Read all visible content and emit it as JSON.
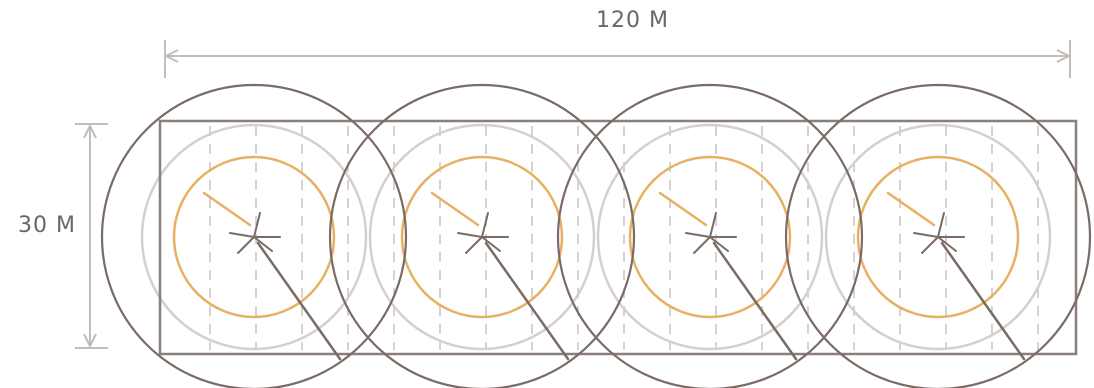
{
  "dimensions": {
    "width_label": "120 M",
    "height_label": "30 M"
  },
  "colors": {
    "outer_ring": "#7a6b66",
    "mid_ring": "#d3d0ce",
    "inner_ring": "#e8b063",
    "field": "#8a7f7a",
    "dashes": "#c7c3c0",
    "dimension_line": "#c2bdb9"
  },
  "units": [
    {
      "name": "unit-1"
    },
    {
      "name": "unit-2"
    },
    {
      "name": "unit-3"
    },
    {
      "name": "unit-4"
    }
  ]
}
